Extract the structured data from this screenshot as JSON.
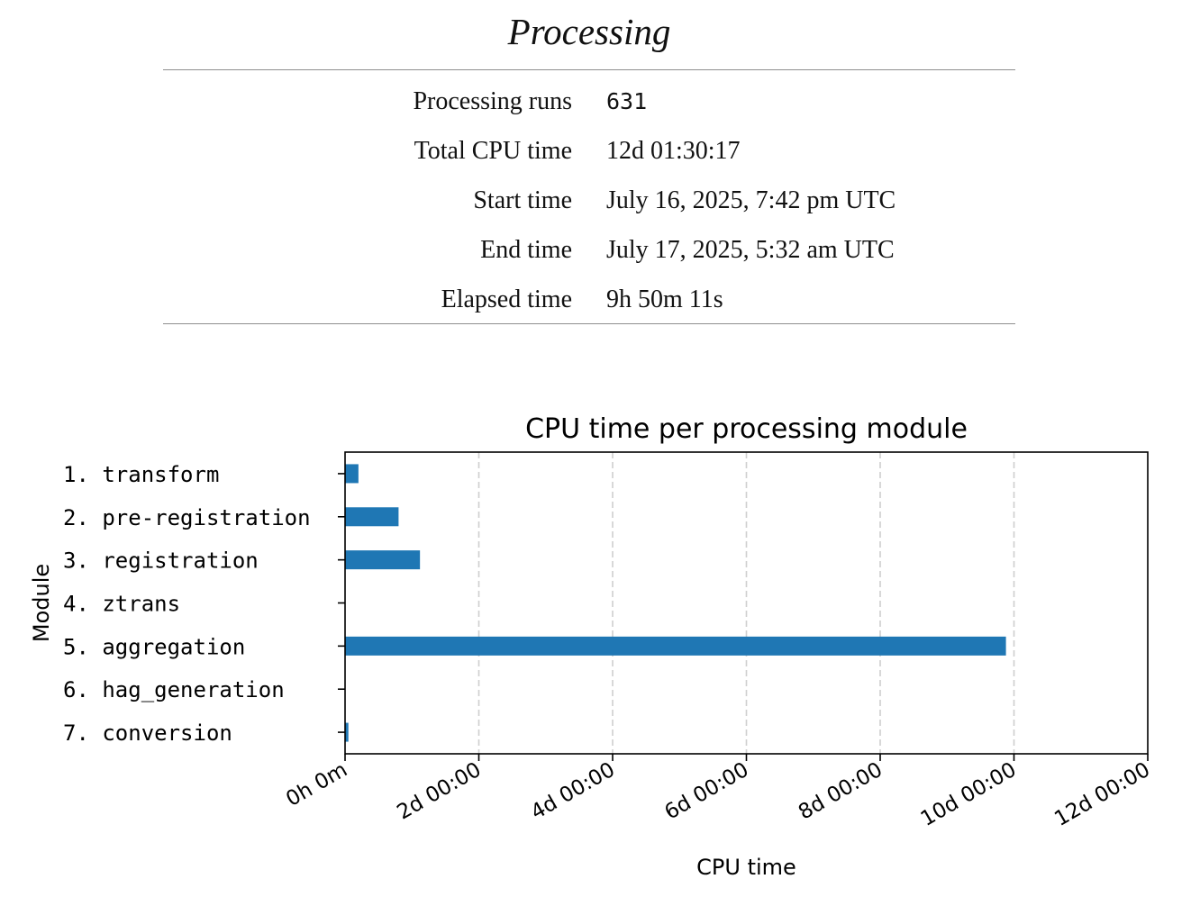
{
  "page": {
    "title": "Processing"
  },
  "summary": {
    "rows": [
      {
        "label": "Processing runs",
        "value": "631"
      },
      {
        "label": "Total CPU time",
        "value": "12d 01:30:17"
      },
      {
        "label": "Start time",
        "value": "July 16, 2025, 7:42 pm UTC"
      },
      {
        "label": "End time",
        "value": "July 17, 2025, 5:32 am UTC"
      },
      {
        "label": "Elapsed time",
        "value": "9h 50m 11s"
      }
    ]
  },
  "chart_data": {
    "type": "bar",
    "orientation": "horizontal",
    "title": "CPU time per processing module",
    "xlabel": "CPU time",
    "ylabel": "Module",
    "categories": [
      "1. transform",
      "2. pre-registration",
      "3. registration",
      "4. ztrans",
      "5. aggregation",
      "6. hag_generation",
      "7. conversion"
    ],
    "values": [
      0.2,
      0.8,
      1.12,
      0.0,
      9.88,
      0.0,
      0.05
    ],
    "value_unit": "days",
    "xlim": [
      0,
      12
    ],
    "xticks": [
      0,
      2,
      4,
      6,
      8,
      10,
      12
    ],
    "xtick_labels": [
      "0h 0m",
      "2d 00:00",
      "4d 00:00",
      "6d 00:00",
      "8d 00:00",
      "10d 00:00",
      "12d 00:00"
    ],
    "grid": "x dashed",
    "bar_color": "#1f77b4"
  }
}
